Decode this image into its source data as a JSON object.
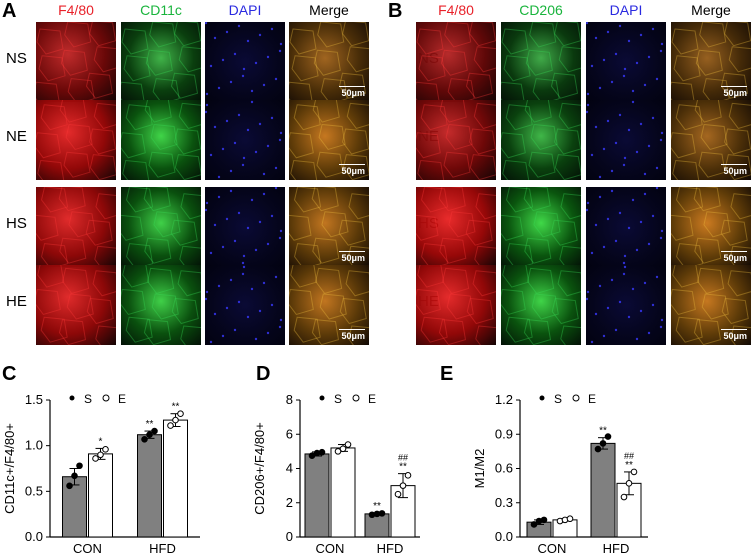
{
  "colors": {
    "red": "#e8222a",
    "green": "#19b43c",
    "blue": "#2a2ae0",
    "bar": "#808080"
  },
  "panelA": {
    "letter": "A",
    "headers": [
      {
        "text": "F4/80",
        "color": "#e8222a"
      },
      {
        "text": "CD11c",
        "color": "#19b43c"
      },
      {
        "text": "DAPI",
        "color": "#2a2ae0"
      },
      {
        "text": "Merge",
        "color": "#000000"
      }
    ],
    "rows": [
      "NS",
      "NE",
      "HS",
      "HE"
    ],
    "scale": "50μm"
  },
  "panelB": {
    "letter": "B",
    "headers": [
      {
        "text": "F4/80",
        "color": "#e8222a"
      },
      {
        "text": "CD206",
        "color": "#19b43c"
      },
      {
        "text": "DAPI",
        "color": "#2a2ae0"
      },
      {
        "text": "Merge",
        "color": "#000000"
      }
    ],
    "rows": [
      "NS",
      "NE",
      "HS",
      "HE"
    ],
    "scale": "50μm"
  },
  "chart_data": [
    {
      "panel": "C",
      "type": "bar",
      "ylabel": "CD11c+/F4/80+",
      "ylim": [
        0,
        1.5
      ],
      "yticks": [
        "0.0",
        "0.5",
        "1.0",
        "1.5"
      ],
      "categories": [
        "CON",
        "HFD"
      ],
      "legend": [
        "S",
        "E"
      ],
      "series": [
        {
          "name": "S",
          "values": [
            0.66,
            1.12
          ],
          "err": [
            0.09,
            0.04
          ],
          "points": [
            [
              0.56,
              0.67,
              0.78
            ],
            [
              1.07,
              1.12,
              1.16
            ]
          ],
          "sig": [
            "",
            "**"
          ]
        },
        {
          "name": "E",
          "values": [
            0.91,
            1.28
          ],
          "err": [
            0.06,
            0.07
          ],
          "points": [
            [
              0.86,
              0.9,
              0.96
            ],
            [
              1.22,
              1.28,
              1.35
            ]
          ],
          "sig": [
            "*",
            "**"
          ]
        }
      ]
    },
    {
      "panel": "D",
      "type": "bar",
      "ylabel": "CD206+/F4/80+",
      "ylim": [
        0,
        8
      ],
      "yticks": [
        "0",
        "2",
        "4",
        "6",
        "8"
      ],
      "categories": [
        "CON",
        "HFD"
      ],
      "legend": [
        "S",
        "E"
      ],
      "series": [
        {
          "name": "S",
          "values": [
            4.85,
            1.35
          ],
          "err": [
            0.12,
            0.05
          ],
          "points": [
            [
              4.75,
              4.9,
              4.95
            ],
            [
              1.3,
              1.35,
              1.38
            ]
          ],
          "sig": [
            "",
            "**"
          ]
        },
        {
          "name": "E",
          "values": [
            5.2,
            3.0
          ],
          "err": [
            0.2,
            0.7
          ],
          "points": [
            [
              5.0,
              5.15,
              5.4
            ],
            [
              2.5,
              3.0,
              3.6
            ]
          ],
          "sig": [
            "",
            "**"
          ],
          "sig2": [
            "",
            "##"
          ]
        }
      ]
    },
    {
      "panel": "E",
      "type": "bar",
      "ylabel": "M1/M2",
      "ylim": [
        0,
        1.2
      ],
      "yticks": [
        "0.0",
        "0.3",
        "0.6",
        "0.9",
        "1.2"
      ],
      "categories": [
        "CON",
        "HFD"
      ],
      "legend": [
        "S",
        "E"
      ],
      "series": [
        {
          "name": "S",
          "values": [
            0.13,
            0.82
          ],
          "err": [
            0.02,
            0.05
          ],
          "points": [
            [
              0.11,
              0.14,
              0.15
            ],
            [
              0.77,
              0.82,
              0.88
            ]
          ],
          "sig": [
            "",
            "**"
          ]
        },
        {
          "name": "E",
          "values": [
            0.15,
            0.47
          ],
          "err": [
            0.01,
            0.1
          ],
          "points": [
            [
              0.14,
              0.15,
              0.16
            ],
            [
              0.35,
              0.47,
              0.57
            ]
          ],
          "sig": [
            "",
            "**"
          ],
          "sig2": [
            "",
            "##"
          ]
        }
      ]
    }
  ]
}
